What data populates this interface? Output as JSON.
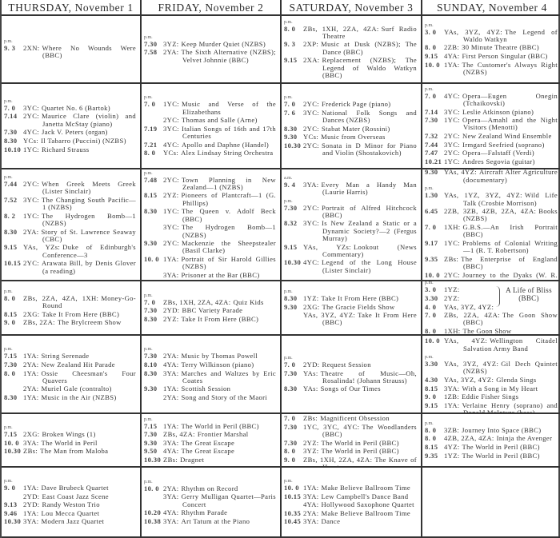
{
  "days": [
    "THURSDAY, November 1",
    "FRIDAY, November 2",
    "SATURDAY, November 3",
    "SUNDAY, November 4"
  ],
  "rows": [
    {
      "cells": [
        [
          {
            "period": "p.m.",
            "items": [
              [
                "9. 3",
                "2XN:",
                "Where No Wounds Were (BBC)"
              ]
            ]
          }
        ],
        [
          {
            "period": "p.m.",
            "items": [
              [
                "7.30",
                "3YZ:",
                "Keep Murder Quiet (NZBS)"
              ],
              [
                "7.58",
                "2YA:",
                "The Sixth Alternative (NZBS); Velvet Johnnie (BBC)"
              ]
            ]
          }
        ],
        [
          {
            "period": "p.m.",
            "items": [
              [
                "8. 0",
                "ZBs, 1XH, 2ZA, 4ZA:",
                "Surf Radio Theatre"
              ],
              [
                "9. 3",
                "2XP:",
                "Music at Dusk (NZBS); The Dance (BBC)"
              ],
              [
                "9.15",
                "2XA:",
                "Replacement (NZBS); The Legend of Waldo Watkyn (BBC)"
              ]
            ]
          }
        ],
        [
          {
            "period": "p.m.",
            "items": [
              [
                "3. 0",
                "YAs, 3YZ, 4YZ:",
                "The Legend of Waldo Watkyn"
              ],
              [
                "8. 0",
                "2ZB:",
                "30 Minute Theatre (BBC)"
              ],
              [
                "9.15",
                "4YA:",
                "First Person Singular (BBC)"
              ],
              [
                "10. 0",
                "1YA:",
                "The Customer's Always Right (NZBS)"
              ]
            ]
          }
        ]
      ]
    },
    {
      "cells": [
        [
          {
            "period": "p.m.",
            "items": [
              [
                "7. 0",
                "3YC:",
                "Quartet No. 6 (Bartok)"
              ],
              [
                "7.14",
                "2YC:",
                "Maurice Clare (violin) and Janetta McStay (piano)"
              ],
              [
                "7.30",
                "4YC:",
                "Jack V. Peters (organ)"
              ],
              [
                "8.30",
                "YCs:",
                "Il Tabarro (Puccini) (NZBS)"
              ],
              [
                "10.10",
                "1YC:",
                "Richard Strauss"
              ]
            ]
          }
        ],
        [
          {
            "period": "p.m.",
            "items": [
              [
                "7. 0",
                "1YC:",
                "Music and Verse of the Elizabethans"
              ],
              [
                "",
                "2YC:",
                "Thomas and Salle (Arne)"
              ],
              [
                "7.19",
                "3YC:",
                "Italian Songs of 16th and 17th Centuries"
              ],
              [
                "7.21",
                "4YC:",
                "Apollo and Daphne (Handel)"
              ],
              [
                "8. 0",
                "YCs:",
                "Alex Lindsay String Orchestra"
              ]
            ]
          }
        ],
        [
          {
            "period": "p.m.",
            "items": [
              [
                "7. 0",
                "2YC:",
                "Frederick Page (piano)"
              ],
              [
                "7. 6",
                "3YC:",
                "National Folk Songs and Dances (NZBS)"
              ],
              [
                "8.30",
                "2YC:",
                "Stabat Mater (Rossini)"
              ],
              [
                "9.30",
                "YCs:",
                "Music from Overseas"
              ],
              [
                "10.30",
                "2YC:",
                "Sonata in D Minor for Piano and Violin (Shostakovich)"
              ]
            ]
          }
        ],
        [
          {
            "period": "p.m.",
            "items": [
              [
                "7. 0",
                "4YC:",
                "Opera—Eugen Onegin (Tchaikovski)"
              ],
              [
                "7.14",
                "3YC:",
                "Leslie Atkinson (piano)"
              ],
              [
                "7.30",
                "1YC:",
                "Opera—Amahl and the Night Visitors (Menotti)"
              ],
              [
                "7.32",
                "2YC:",
                "New Zealand Wind Ensemble"
              ],
              [
                "7.44",
                "3YC:",
                "Irmgard Seefried (soprano)"
              ],
              [
                "7.47",
                "2YC:",
                "Opera—Falstaff (Verdi)"
              ],
              [
                "10.21",
                "1YC:",
                "Andres Segovia (guitar)"
              ]
            ]
          }
        ]
      ]
    },
    {
      "cells": [
        [
          {
            "period": "p.m.",
            "items": [
              [
                "7.44",
                "2YC:",
                "When Greek Meets Greek (Lister Sinclair)"
              ],
              [
                "7.52",
                "3YC:",
                "The Changing South Pacific—1 (NZBS)"
              ],
              [
                "8. 2",
                "1YC:",
                "The Hydrogen Bomb—1 (NZBS)"
              ],
              [
                "8.30",
                "2YA:",
                "Story of St. Lawrence Seaway (CBC)"
              ],
              [
                "9.15",
                "YAs, YZs:",
                "Duke of Edinburgh's Conference—3"
              ],
              [
                "10.15",
                "2YC:",
                "Arawata Bill, by Denis Glover (a reading)"
              ]
            ]
          }
        ],
        [
          {
            "period": "p.m.",
            "items": [
              [
                "7.48",
                "2YC:",
                "Town Planning in New Zealand—1 (NZBS)"
              ],
              [
                "8.15",
                "2YZ:",
                "Pioneers of Plantcraft—1 (G. Phillips)"
              ],
              [
                "8.30",
                "1YC:",
                "The Queen v. Adolf Beck (BBC)"
              ],
              [
                "",
                "3YC:",
                "The Hydrogen Bomb—1 (NZBS)"
              ],
              [
                "9.30",
                "2YC:",
                "Mackenzie the Sheepstealer (Basil Clarke)"
              ],
              [
                "10. 0",
                "1YA:",
                "Portrait of Sir Harold Gillies (NZBS)"
              ],
              [
                "",
                "3YA:",
                "Prisoner at the Bar (BBC)"
              ]
            ]
          }
        ],
        [
          {
            "period": "a.m.",
            "items": [
              [
                "9. 4",
                "3YA:",
                "Every Man a Handy Man (Laurie Harris)"
              ]
            ]
          },
          {
            "period": "p.m.",
            "items": [
              [
                "7.30",
                "2YC:",
                "Portrait of Alfred Hitchcock (BBC)"
              ],
              [
                "8.32",
                "3YC:",
                "Is New Zealand a Static or a Dynamic Society?—2 (Fergus Murray)"
              ],
              [
                "9.15",
                "YAs, YZs:",
                "Lookout (News Commentary)"
              ],
              [
                "10.30",
                "4YC:",
                "Legend of the Long House (Lister Sinclair)"
              ]
            ]
          }
        ],
        [
          {
            "period": "a.m.",
            "items": [
              [
                "9.30",
                "YAs, 4YZ:",
                "Aircraft Alter Agriculture (documentary)"
              ]
            ]
          },
          {
            "period": "p.m.",
            "items": [
              [
                "1.30",
                "YAs, 1YZ, 3YZ, 4YZ:",
                "Wild Life Talk (Crosbie Morrison)"
              ],
              [
                "6.45",
                "2ZB, 3ZB, 4ZB, 2ZA, 4ZA:",
                "Books (NZBS)"
              ],
              [
                "7. 0",
                "1XH:",
                "G.B.S.—An Irish Portrait (BBC)"
              ],
              [
                "9.17",
                "1YC:",
                "Problems of Colonial Writing—1 (R. T. Robertson)"
              ],
              [
                "9.35",
                "ZBs:",
                "The Enterprise of England (BBC)"
              ],
              [
                "10. 0",
                "2YC:",
                "Journey to the Dyaks (W. R. Roff)"
              ]
            ]
          }
        ]
      ]
    },
    {
      "cells": [
        [
          {
            "period": "p.m.",
            "items": [
              [
                "8. 0",
                "ZBs, 2ZA, 4ZA, 1XH:",
                "Money-Go-Round"
              ],
              [
                "8.15",
                "2XG:",
                "Take It From Here (BBC)"
              ],
              [
                "9. 0",
                "ZBs, 2ZA:",
                "The Brylcreem Show"
              ]
            ]
          }
        ],
        [
          {
            "period": "p.m.",
            "items": [
              [
                "7. 0",
                "ZBs, 1XH, 2ZA, 4ZA:",
                "Quiz Kids"
              ],
              [
                "7.30",
                "2YD:",
                "BBC Variety Parade"
              ],
              [
                "8.30",
                "2YZ:",
                "Take It From Here (BBC)"
              ]
            ]
          }
        ],
        [
          {
            "period": "p.m.",
            "items": [
              [
                "8.30",
                "1YZ:",
                "Take It From Here (BBC)"
              ],
              [
                "9.30",
                "2XG:",
                "The Gracie Fields Show"
              ],
              [
                "",
                "YAs, 3YZ, 4YZ:",
                "Take It From Here (BBC)"
              ]
            ]
          }
        ],
        [
          {
            "period": "p.m.",
            "brace": "A Life of Bliss (BBC)",
            "items": [
              [
                "3. 0",
                "1YZ:",
                ""
              ],
              [
                "3.30",
                "2YZ:",
                ""
              ],
              [
                "4. 0",
                "YAs, 3YZ, 4YZ:",
                ""
              ],
              [
                "7. 0",
                "ZBs, 2ZA, 4ZA:",
                "The Goon Show (BBC)"
              ],
              [
                "8. 0",
                "1XH:",
                "The Goon Show"
              ]
            ]
          }
        ]
      ]
    },
    {
      "cells": [
        [
          {
            "period": "p.m.",
            "items": [
              [
                "7.15",
                "1YA:",
                "String Serenade"
              ],
              [
                "7.30",
                "2YA:",
                "New Zealand Hit Parade"
              ],
              [
                "8. 0",
                "1YA:",
                "Ossie Cheesman's Four Quavers"
              ],
              [
                "",
                "2YA:",
                "Muriel Gale (contralto)"
              ],
              [
                "8.30",
                "1YA:",
                "Music in the Air (NZBS)"
              ]
            ]
          }
        ],
        [
          {
            "period": "p.m.",
            "items": [
              [
                "7.30",
                "2YA:",
                "Music by Thomas Powell"
              ],
              [
                "8.10",
                "4YA:",
                "Terry Wilkinson (piano)"
              ],
              [
                "8.30",
                "3YA:",
                "Marches and Waltzes by Eric Coates"
              ],
              [
                "9.30",
                "1YA:",
                "Scottish Session"
              ],
              [
                "",
                "2YA:",
                "Song and Story of the Maori"
              ]
            ]
          }
        ],
        [
          {
            "period": "p.m.",
            "items": [
              [
                "7. 0",
                "2YD:",
                "Request Session"
              ],
              [
                "7.30",
                "YAs:",
                "Theatre of Music—Oh, Rosalinda! (Johann Strauss)"
              ],
              [
                "8.30",
                "YAs:",
                "Songs of Our Times"
              ]
            ]
          }
        ],
        [
          {
            "period": "a.m.",
            "items": [
              [
                "10. 0",
                "YAs, 4YZ:",
                "Wellington Citadel Salvation Army Band"
              ]
            ]
          },
          {
            "period": "p.m.",
            "items": [
              [
                "3.30",
                "YAs, 3YZ, 4YZ:",
                "Gil Dech Quintet (NZBS)"
              ],
              [
                "4.30",
                "YAs, 3YZ, 4YZ:",
                "Glenda Sings"
              ],
              [
                "8.15",
                "3YA:",
                "With a Song in My Heart"
              ],
              [
                "9. 0",
                "1ZB:",
                "Eddie Fisher Sings"
              ],
              [
                "9.15",
                "1YA:",
                "Verlaine Henry (soprano) and Donald McIntyre (bass)"
              ]
            ]
          }
        ]
      ]
    },
    {
      "cells": [
        [
          {
            "period": "p.m.",
            "items": [
              [
                "7.15",
                "2XG:",
                "Broken Wings (1)"
              ],
              [
                "10. 0",
                "3YA:",
                "The World in Peril"
              ],
              [
                "10.30",
                "ZBs:",
                "The Man from Maloba"
              ]
            ]
          }
        ],
        [
          {
            "period": "p.m.",
            "items": [
              [
                "7.15",
                "1YA:",
                "The World in Peril (BBC)"
              ],
              [
                "7.30",
                "ZBs, 4ZA:",
                "Frontier Marshal"
              ],
              [
                "9.30",
                "3YA:",
                "The Great Escape"
              ],
              [
                "9.50",
                "4YA:",
                "The Great Escape"
              ],
              [
                "10.30",
                "ZBs:",
                "Dragnet"
              ]
            ]
          }
        ],
        [
          {
            "period": "p.m.",
            "items": [
              [
                "7. 0",
                "ZBs:",
                "Magnificent Obsession"
              ],
              [
                "7.30",
                "1YC, 3YC, 4YC:",
                "The Woodlanders (BBC)"
              ],
              [
                "7.30",
                "2YZ:",
                "The World in Peril (BBC)"
              ],
              [
                "8. 0",
                "3YZ:",
                "The World in Peril (BBC)"
              ],
              [
                "9. 0",
                "ZBs, 1XH, 2ZA, 4ZA:",
                "The Knave of Hearts"
              ]
            ]
          }
        ],
        [
          {
            "period": "p.m.",
            "items": [
              [
                "8. 0",
                "3ZB:",
                "Journey Into Space (BBC)"
              ],
              [
                "8. 0",
                "4ZB, 2ZA, 4ZA:",
                "Ininja the Avenger"
              ],
              [
                "8.15",
                "4YZ:",
                "The World in Peril (BBC)"
              ],
              [
                "9.35",
                "1YZ:",
                "The World in Peril (BBC)"
              ]
            ]
          }
        ]
      ]
    },
    {
      "cells": [
        [
          {
            "period": "p.m.",
            "items": [
              [
                "9. 0",
                "1YA:",
                "Dave Brubeck Quartet"
              ],
              [
                "",
                "2YD:",
                "East Coast Jazz Scene"
              ],
              [
                "9.13",
                "2YD:",
                "Randy Weston Trio"
              ],
              [
                "9.46",
                "1YA:",
                "Lou Mecca Quartet"
              ],
              [
                "10.30",
                "3YA:",
                "Modern Jazz Quartet"
              ]
            ]
          }
        ],
        [
          {
            "period": "p.m.",
            "items": [
              [
                "10. 0",
                "2YA:",
                "Rhythm on Record"
              ],
              [
                "",
                "3YA:",
                "Gerry Mulligan Quartet—Paris Concert"
              ],
              [
                "10.20",
                "4YA:",
                "Rhythm Parade"
              ],
              [
                "10.38",
                "3YA:",
                "Art Tatum at the Piano"
              ]
            ]
          }
        ],
        [
          {
            "period": "p.m.",
            "items": [
              [
                "10. 0",
                "1YA:",
                "Make Believe Ballroom Time"
              ],
              [
                "10.15",
                "3YA:",
                "Lew Campbell's Dance Band"
              ],
              [
                "",
                "4YA:",
                "Hollywood Saxophone Quartet"
              ],
              [
                "10.35",
                "2YA:",
                "Make Believe Ballroom Time"
              ],
              [
                "10.45",
                "3YA:",
                "Dance"
              ]
            ]
          }
        ],
        []
      ]
    }
  ]
}
